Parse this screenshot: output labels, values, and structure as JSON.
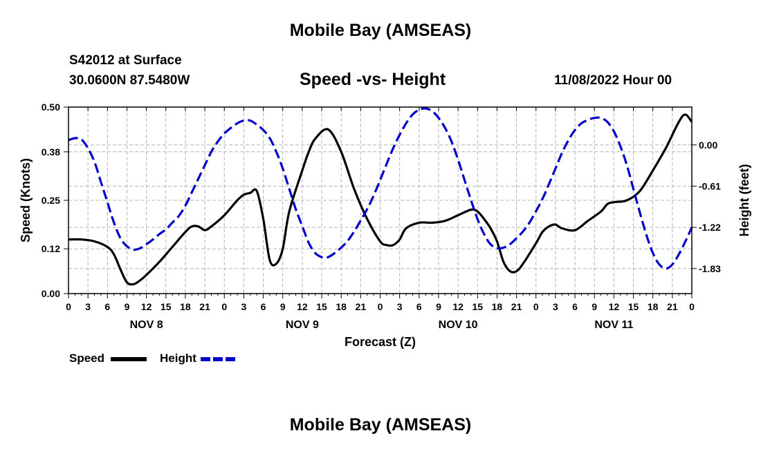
{
  "page": {
    "title_top": "Mobile Bay (AMSEAS)",
    "title_bottom": "Mobile Bay (AMSEAS)",
    "station_line1": "S42012 at Surface",
    "station_line2": "30.0600N  87.5480W",
    "chart_title": "Speed -vs- Height",
    "date_label": "11/08/2022 Hour 00",
    "legend": [
      {
        "label": "Speed",
        "color": "#000000",
        "style": "solid"
      },
      {
        "label": "Height",
        "color": "#0000cc",
        "style": "dashed"
      }
    ]
  },
  "chart_data": {
    "type": "line",
    "title": "Speed -vs- Height",
    "xlabel": "Forecast (Z)",
    "ylabel_left": "Speed (Knots)",
    "ylabel_right": "Height (feet)",
    "x_units": "hours since 11/08/2022 00Z",
    "xlim": [
      0,
      96
    ],
    "x_tick_labels": [
      "0",
      "3",
      "6",
      "9",
      "12",
      "15",
      "18",
      "21",
      "0",
      "3",
      "6",
      "9",
      "12",
      "15",
      "18",
      "21",
      "0",
      "3",
      "6",
      "9",
      "12",
      "15",
      "18",
      "21",
      "0",
      "3",
      "6",
      "9",
      "12",
      "15",
      "18",
      "21",
      "0"
    ],
    "x_day_labels": [
      {
        "label": "NOV 8",
        "hour": 12
      },
      {
        "label": "NOV 9",
        "hour": 36
      },
      {
        "label": "NOV 10",
        "hour": 60
      },
      {
        "label": "NOV 11",
        "hour": 84
      }
    ],
    "ylim_left": [
      0,
      0.5
    ],
    "y_ticks_left": [
      0,
      0.12,
      0.25,
      0.38,
      0.5
    ],
    "y_tick_labels_left": [
      "0.00",
      "0.12",
      "0.25",
      "0.38",
      "0.50"
    ],
    "ylim_right": [
      -2.2,
      0.56
    ],
    "y_ticks_right": [
      0,
      -0.61,
      -1.22,
      -1.83
    ],
    "y_tick_labels_right": [
      "0.00",
      "-0.61",
      "-1.22",
      "-1.83"
    ],
    "grid": true,
    "series": [
      {
        "name": "Speed",
        "axis": "left",
        "color": "#000000",
        "style": "solid",
        "x": [
          0,
          2,
          4,
          6,
          7,
          8,
          9,
          10,
          11,
          12,
          14,
          16,
          18,
          19,
          20,
          21,
          22,
          24,
          26,
          27,
          28,
          29,
          30,
          31,
          32,
          33,
          34,
          36,
          37,
          38,
          40,
          42,
          44,
          46,
          48,
          49,
          50,
          51,
          52,
          54,
          56,
          58,
          60,
          62,
          63,
          64,
          65,
          66,
          67,
          68,
          69,
          70,
          72,
          73,
          74,
          75,
          76,
          78,
          80,
          82,
          83,
          84,
          86,
          88,
          90,
          92,
          94,
          95,
          96
        ],
        "y": [
          0.145,
          0.145,
          0.14,
          0.125,
          0.105,
          0.065,
          0.03,
          0.025,
          0.035,
          0.05,
          0.085,
          0.125,
          0.165,
          0.18,
          0.18,
          0.17,
          0.18,
          0.21,
          0.25,
          0.265,
          0.27,
          0.275,
          0.2,
          0.09,
          0.08,
          0.12,
          0.22,
          0.33,
          0.38,
          0.415,
          0.44,
          0.38,
          0.28,
          0.2,
          0.14,
          0.13,
          0.13,
          0.145,
          0.175,
          0.19,
          0.19,
          0.195,
          0.21,
          0.225,
          0.22,
          0.2,
          0.175,
          0.14,
          0.085,
          0.06,
          0.06,
          0.08,
          0.135,
          0.165,
          0.18,
          0.185,
          0.175,
          0.17,
          0.195,
          0.22,
          0.24,
          0.245,
          0.25,
          0.275,
          0.33,
          0.39,
          0.46,
          0.48,
          0.46
        ]
      },
      {
        "name": "Height",
        "axis": "right",
        "color": "#0000cc",
        "style": "dashed",
        "x": [
          0,
          1,
          2,
          3,
          4,
          5,
          6,
          7,
          8,
          9,
          10,
          11,
          12,
          13,
          14,
          15,
          16,
          17,
          18,
          19,
          20,
          21,
          22,
          23,
          24,
          25,
          26,
          27,
          28,
          29,
          30,
          31,
          32,
          33,
          34,
          35,
          36,
          37,
          38,
          39,
          40,
          41,
          42,
          43,
          44,
          45,
          46,
          47,
          48,
          49,
          50,
          51,
          52,
          53,
          54,
          55,
          56,
          57,
          58,
          59,
          60,
          61,
          62,
          63,
          64,
          65,
          66,
          67,
          68,
          69,
          70,
          71,
          72,
          73,
          74,
          75,
          76,
          77,
          78,
          79,
          80,
          81,
          82,
          83,
          84,
          85,
          86,
          87,
          88,
          89,
          90,
          91,
          92,
          93,
          94,
          95,
          96
        ],
        "y": [
          0.07,
          0.1,
          0.08,
          -0.05,
          -0.25,
          -0.55,
          -0.85,
          -1.15,
          -1.38,
          -1.5,
          -1.55,
          -1.53,
          -1.47,
          -1.4,
          -1.32,
          -1.25,
          -1.15,
          -1.05,
          -0.9,
          -0.7,
          -0.5,
          -0.3,
          -0.1,
          0.05,
          0.17,
          0.25,
          0.32,
          0.36,
          0.36,
          0.3,
          0.22,
          0.1,
          -0.1,
          -0.35,
          -0.65,
          -0.95,
          -1.2,
          -1.45,
          -1.6,
          -1.66,
          -1.66,
          -1.6,
          -1.52,
          -1.42,
          -1.28,
          -1.12,
          -0.95,
          -0.75,
          -0.52,
          -0.28,
          -0.05,
          0.15,
          0.32,
          0.45,
          0.52,
          0.54,
          0.5,
          0.4,
          0.25,
          0.05,
          -0.22,
          -0.52,
          -0.82,
          -1.1,
          -1.32,
          -1.47,
          -1.53,
          -1.52,
          -1.47,
          -1.38,
          -1.28,
          -1.15,
          -0.98,
          -0.8,
          -0.58,
          -0.35,
          -0.12,
          0.07,
          0.22,
          0.32,
          0.37,
          0.4,
          0.4,
          0.34,
          0.2,
          -0.02,
          -0.3,
          -0.65,
          -1.0,
          -1.33,
          -1.6,
          -1.77,
          -1.83,
          -1.77,
          -1.62,
          -1.43,
          -1.22
        ]
      }
    ]
  }
}
